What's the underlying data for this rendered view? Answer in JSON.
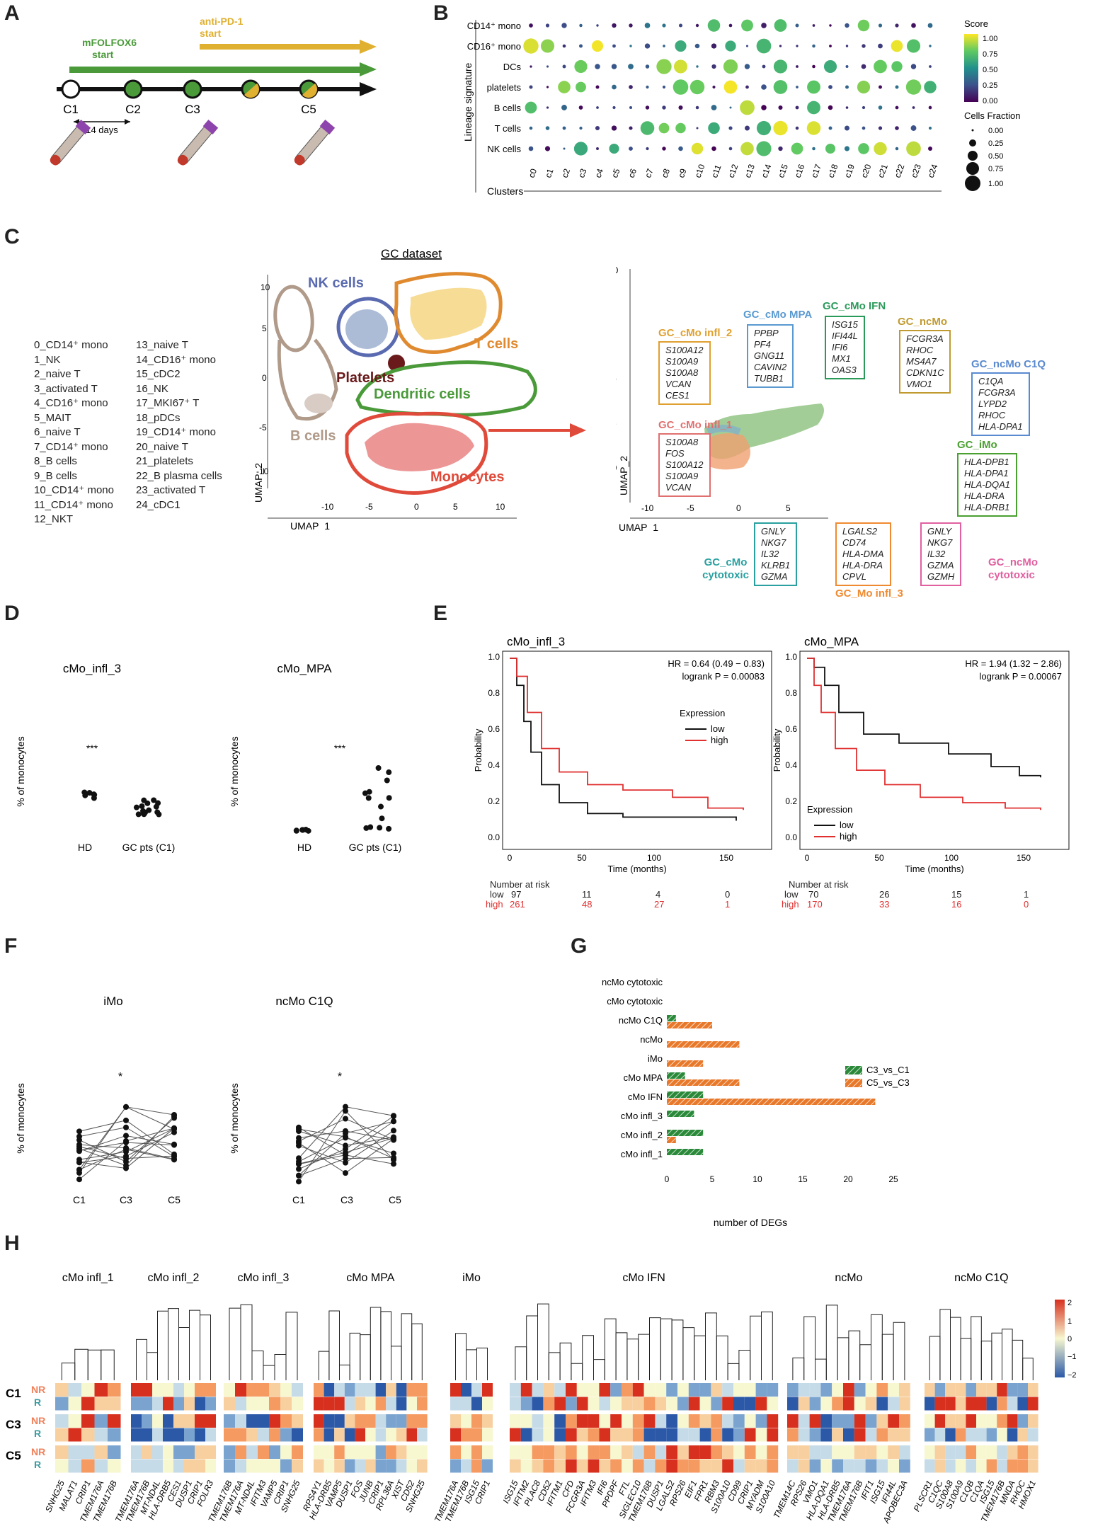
{
  "panels": {
    "A": "A",
    "B": "B",
    "C": "C",
    "D": "D",
    "E": "E",
    "F": "F",
    "G": "G",
    "H": "H"
  },
  "colors": {
    "green": "#4a9a3a",
    "gold": "#e0b030",
    "red": "#e04a3a",
    "orange": "#f08a30",
    "nk": "#5a6ab0",
    "bcell": "#b09a8a",
    "platelet": "#6a1a1a"
  },
  "panelA": {
    "antipd1": "anti-PD-1\nstart",
    "antipd1_l1": "anti-PD-1",
    "antipd1_l2": "start",
    "mfolfox_l1": "mFOLFOX6",
    "mfolfox_l2": "start",
    "timepoints": [
      "C1",
      "C2",
      "C3",
      "",
      "C5"
    ],
    "interval": "14 days"
  },
  "panelB": {
    "rows": [
      "CD14⁺ mono",
      "CD16⁺ mono",
      "DCs",
      "platelets",
      "B cells",
      "T cells",
      "NK cells"
    ],
    "clusters": [
      "c0",
      "c1",
      "c2",
      "c3",
      "c4",
      "c5",
      "c6",
      "c7",
      "c8",
      "c9",
      "c10",
      "c11",
      "c12",
      "c13",
      "c14",
      "c15",
      "c16",
      "c17",
      "c18",
      "c19",
      "c20",
      "c21",
      "c22",
      "c23",
      "c24"
    ],
    "ylabel": "Lineage signature",
    "xlabel": "Clusters",
    "score_title": "Score",
    "score_ticks": [
      "1.00",
      "0.75",
      "0.50",
      "0.25",
      "0.00"
    ],
    "frac_title": "Cells Fraction",
    "frac_ticks": [
      "0.00",
      "0.25",
      "0.50",
      "0.75",
      "1.00"
    ]
  },
  "panelC": {
    "title": "GC dataset",
    "cluster_list_left": [
      "0_CD14⁺ mono",
      "1_NK",
      "2_naive T",
      "3_activated T",
      "4_CD16⁺ mono",
      "5_MAIT",
      "6_naive T",
      "7_CD14⁺ mono",
      "8_B cells",
      "9_B cells",
      "10_CD14⁺ mono",
      "11_CD14⁺ mono",
      "12_NKT"
    ],
    "cluster_list_right": [
      "13_naive T",
      "14_CD16⁺ mono",
      "15_cDC2",
      "16_NK",
      "17_MKI67⁺ T",
      "18_pDCs",
      "19_CD14⁺ mono",
      "20_naive T",
      "21_platelets",
      "22_B plasma cells",
      "23_activated T",
      "24_cDC1"
    ],
    "labels": {
      "nk": "NK cells",
      "t": "T cells",
      "platelets": "Platelets",
      "dc": "Dendritic cells",
      "b": "B cells",
      "mono": "Monocytes"
    },
    "umap1": "UMAP_1",
    "umap2": "UMAP_2",
    "xticks": [
      "-10",
      "-5",
      "0",
      "5",
      "10"
    ],
    "yticks": [
      "10",
      "5",
      "0",
      "-5",
      "-10"
    ],
    "boxes": [
      {
        "title": "GC_cMo infl_2",
        "genes": [
          "S100A12",
          "S100A9",
          "S100A8",
          "VCAN",
          "CES1"
        ]
      },
      {
        "title": "GC_cMo MPA",
        "genes": [
          "PPBP",
          "PF4",
          "GNG11",
          "CAVIN2",
          "TUBB1"
        ]
      },
      {
        "title": "GC_cMo IFN",
        "genes": [
          "ISG15",
          "IFI44L",
          "IFI6",
          "MX1",
          "OAS3"
        ]
      },
      {
        "title": "GC_ncMo",
        "genes": [
          "FCGR3A",
          "RHOC",
          "MS4A7",
          "CDKN1C",
          "VMO1"
        ]
      },
      {
        "title": "GC_ncMo C1Q",
        "genes": [
          "C1QA",
          "FCGR3A",
          "LYPD2",
          "RHOC",
          "HLA-DPA1"
        ]
      },
      {
        "title": "GC_cMo infl_1",
        "genes": [
          "S100A8",
          "FOS",
          "S100A12",
          "S100A9",
          "VCAN"
        ]
      },
      {
        "title": "GC_iMo",
        "genes": [
          "HLA-DPB1",
          "HLA-DPA1",
          "HLA-DQA1",
          "HLA-DRA",
          "HLA-DRB1"
        ]
      },
      {
        "title": "GC_cMo cytotoxic",
        "genes": [
          "GNLY",
          "NKG7",
          "IL32",
          "KLRB1",
          "GZMA"
        ]
      },
      {
        "title": "GC_Mo infl_3",
        "genes": [
          "LGALS2",
          "CD74",
          "HLA-DMA",
          "HLA-DRA",
          "CPVL"
        ]
      },
      {
        "title": "GC_ncMo cytotoxic",
        "genes": [
          "GNLY",
          "NKG7",
          "IL32",
          "GZMA",
          "GZMH"
        ]
      }
    ]
  },
  "panelD": {
    "charts": [
      {
        "title": "cMo_infl_3",
        "ylabel": "% of monocytes",
        "groups": [
          "HD",
          "GC pts (C1)"
        ],
        "sig": "***"
      },
      {
        "title": "cMo_MPA",
        "ylabel": "% of monocytes",
        "groups": [
          "HD",
          "GC pts (C1)"
        ],
        "sig": "***"
      }
    ]
  },
  "panelE": {
    "plots": [
      {
        "title": "cMo_infl_3",
        "hr": "HR = 0.64 (0.49 − 0.83)",
        "logrank": "logrank P = 0.00083",
        "legend_title": "Expression",
        "risk_low": [
          "97",
          "11",
          "4",
          "0"
        ],
        "risk_high": [
          "261",
          "48",
          "27",
          "1"
        ]
      },
      {
        "title": "cMo_MPA",
        "hr": "HR = 1.94 (1.32 − 2.86)",
        "logrank": "logrank P = 0.00067",
        "legend_title": "Expression",
        "risk_low": [
          "70",
          "26",
          "15",
          "1"
        ],
        "risk_high": [
          "170",
          "33",
          "16",
          "0"
        ]
      }
    ],
    "ylabel": "Probability",
    "xlabel": "Time (months)",
    "low": "low",
    "high": "high",
    "risk_title": "Number at risk",
    "xticks": [
      "0",
      "50",
      "100",
      "150"
    ],
    "yticks": [
      "0.0",
      "0.2",
      "0.4",
      "0.6",
      "0.8",
      "1.0"
    ]
  },
  "panelF": {
    "charts": [
      {
        "title": "iMo",
        "ylabel": "% of monocytes",
        "sig": "*"
      },
      {
        "title": "ncMo C1Q",
        "ylabel": "% of monocytes",
        "sig": "*"
      }
    ],
    "x": [
      "C1",
      "C3",
      "C5"
    ]
  },
  "chart_data": [
    {
      "type": "bar",
      "title": "G",
      "categories": [
        "ncMo cytotoxic",
        "cMo cytotoxic",
        "ncMo C1Q",
        "ncMo",
        "iMo",
        "cMo MPA",
        "cMo IFN",
        "cMo infl_3",
        "cMo infl_2",
        "cMo infl_1"
      ],
      "series": [
        {
          "name": "C3_vs_C1",
          "values": [
            0,
            0,
            1,
            0,
            0,
            2,
            4,
            3,
            4,
            4
          ]
        },
        {
          "name": "C5_vs_C3",
          "values": [
            0,
            0,
            5,
            8,
            4,
            8,
            23,
            0,
            1,
            0
          ]
        }
      ],
      "xlabel": "number of DEGs",
      "xlim": [
        0,
        25
      ],
      "xticks": [
        "0",
        "5",
        "10",
        "15",
        "20",
        "25"
      ]
    }
  ],
  "panelH": {
    "groups": [
      "cMo infl_1",
      "cMo infl_2",
      "cMo infl_3",
      "cMo MPA",
      "iMo",
      "cMo IFN",
      "ncMo",
      "ncMo C1Q"
    ],
    "timepoints": [
      "C1",
      "C3",
      "C5"
    ],
    "resp": [
      "NR",
      "R"
    ],
    "scale": [
      "2",
      "1",
      "0",
      "−1",
      "−2"
    ],
    "genes": [
      [
        "SNHG25",
        "MALAT1",
        "CRIP1",
        "TMEM176A",
        "TMEM176B"
      ],
      [
        "TMEM176A",
        "TMEM176B",
        "MT-ND4L",
        "HLA-DRB5",
        "CES1",
        "DUSP1",
        "CRIP1",
        "FOLR3"
      ],
      [
        "TMEM176B",
        "TMEM176A",
        "MT-ND4L",
        "IFITM3",
        "VAMP5",
        "CRIP1",
        "SNHG25"
      ],
      [
        "RPS4Y1",
        "HLA-DRB5",
        "VAMP5",
        "DUSP1",
        "FOS",
        "JUNB",
        "CRIP1",
        "RPL36A",
        "XIST",
        "CD52",
        "SNHG25"
      ],
      [
        "TMEM176A",
        "TMEM176B",
        "ISG15",
        "CRIP1"
      ],
      [
        "ISG15",
        "IFITM2",
        "PLAC8",
        "CD52",
        "IFITM1",
        "CFD",
        "FCGR3A",
        "IFITM3",
        "IFI6",
        "PPDPF",
        "FTL",
        "SIGLEC10",
        "TMEM176B",
        "DUSP1",
        "LGALS2",
        "RPS26",
        "EIF1",
        "FPR1",
        "RBM3",
        "S100A10",
        "CD99",
        "CRIP1",
        "MYADM",
        "S100A10"
      ],
      [
        "TMEM14C",
        "RPS26",
        "VMO1",
        "HLA-DQA1",
        "HLA-DRB5",
        "TMEM176A",
        "TMEM176B",
        "IFIT1",
        "ISG15",
        "IFI44L",
        "APOBEC3A"
      ],
      [
        "PLSCR1",
        "C1QC",
        "S100A8",
        "S100A9",
        "C1QB",
        "C1QA",
        "ISG15",
        "TMEM176B",
        "MNDA",
        "RHOC",
        "HMOX1"
      ]
    ]
  }
}
